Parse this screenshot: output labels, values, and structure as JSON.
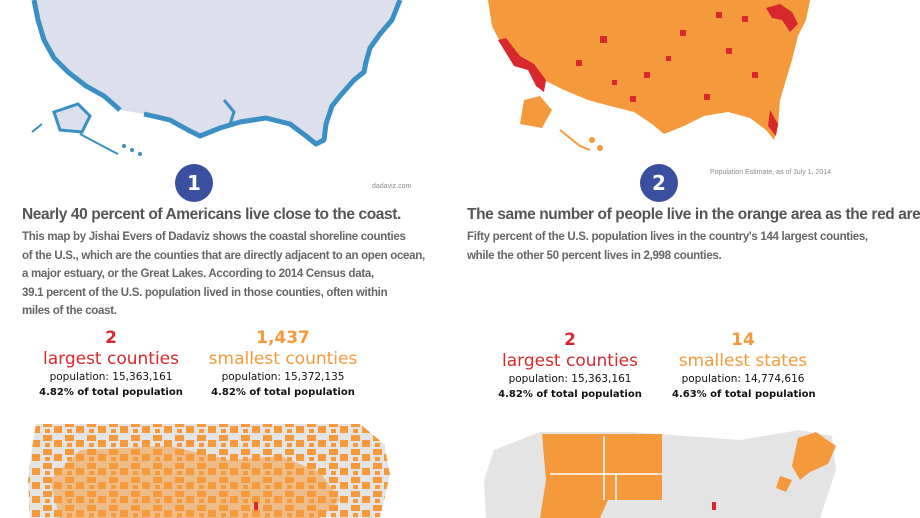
{
  "colors": {
    "red": "#d8282d",
    "orange": "#f59a3c",
    "badge": "#3a4fa0",
    "coast_blue": "#3a8fc4",
    "land_gray": "#dde0ec",
    "grid_gray": "#e4e4e4"
  },
  "panel1": {
    "badge": "1",
    "credit": "dadaviz.com",
    "headline": "Nearly 40 percent of Americans live close to the coast.",
    "description_lines": [
      "This map by Jishai Evers of Dadaviz shows the coastal shoreline counties",
      "of the U.S., which are the counties that are directly adjacent to an open ocean,",
      "a major estuary, or the Great Lakes. According to 2014 Census data,",
      "39.1 percent of the U.S. population lived in those counties, often within",
      "miles of the coast."
    ]
  },
  "panel2": {
    "badge": "2",
    "credit": "Population Estimate, as of July 1, 2014",
    "headline": "The same number of people live in the orange area as the red area.",
    "description_lines": [
      "Fifty percent of the U.S. population lives in the country's 144 largest counties,",
      "while the other 50 percent lives in 2,998 counties."
    ]
  },
  "compare_left": {
    "red": {
      "count": "2",
      "label": "largest counties",
      "population": "population: 15,363,161",
      "percent": "4.82% of total population"
    },
    "orange": {
      "count": "1,437",
      "label": "smallest counties",
      "population": "population: 15,372,135",
      "percent": "4.82% of total population"
    }
  },
  "compare_right": {
    "red": {
      "count": "2",
      "label": "largest counties",
      "population": "population: 15,363,161",
      "percent": "4.82% of total population"
    },
    "orange": {
      "count": "14",
      "label": "smallest states",
      "population": "population: 14,774,616",
      "percent": "4.63% of total population"
    }
  }
}
